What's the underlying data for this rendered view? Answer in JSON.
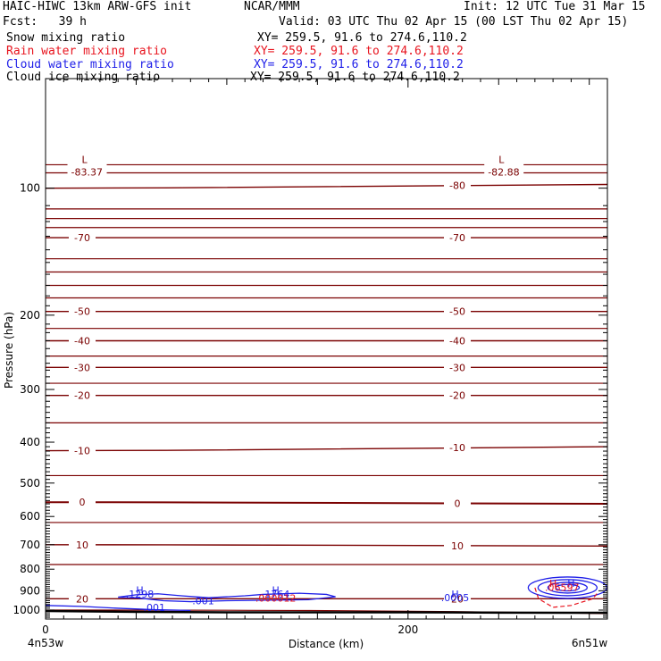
{
  "header": {
    "title": "HAIC-HIWC 13km ARW-GFS init",
    "org": "NCAR/MMM",
    "init": "Init: 12 UTC Tue 31 Mar 15",
    "fcst": "Fcst:   39 h",
    "valid": "Valid: 03 UTC Thu 02 Apr 15 (00 LST Thu 02 Apr 15)",
    "fields": [
      {
        "name": "Snow mixing ratio",
        "xy": "XY= 259.5, 91.6 to 274.6,110.2",
        "color": "#000000"
      },
      {
        "name": "Rain water mixing ratio",
        "xy": "XY= 259.5, 91.6 to 274.6,110.2",
        "color": "#e8141e"
      },
      {
        "name": "Cloud water mixing ratio",
        "xy": "XY= 259.5, 91.6 to 274.6,110.2",
        "color": "#1e1ee8"
      },
      {
        "name": "Cloud ice mixing ratio",
        "xy": "XY= 259.5, 91.6 to 274.6,110.2",
        "color": "#000000"
      }
    ]
  },
  "chart_data": {
    "type": "contour-cross-section",
    "xlabel": "Distance (km)",
    "ylabel": "Pressure (hPa)",
    "xlim": [
      0,
      310
    ],
    "ylim": [
      1050,
      55
    ],
    "y_log": true,
    "x_ticks": [
      0,
      200
    ],
    "y_ticks": [
      100,
      200,
      300,
      400,
      500,
      600,
      700,
      800,
      900,
      1000
    ],
    "x_endpoints": {
      "left": "4n53w",
      "right": "6n51w"
    },
    "temperature_isotherms": {
      "color": "#7a0000",
      "levels": [
        {
          "value": -80,
          "p_left": 100,
          "p_right": 98,
          "label_left": "",
          "label_right": "-80"
        },
        {
          "value": -70,
          "p_left": 131,
          "p_right": 131,
          "label_left": "-70",
          "label_right": "-70"
        },
        {
          "value": -50,
          "p_left": 196,
          "p_right": 196,
          "label_left": "-50",
          "label_right": "-50"
        },
        {
          "value": -40,
          "p_left": 230,
          "p_right": 230,
          "label_left": "-40",
          "label_right": "-40"
        },
        {
          "value": -30,
          "p_left": 266,
          "p_right": 266,
          "label_left": "-30",
          "label_right": "-30"
        },
        {
          "value": -20,
          "p_left": 310,
          "p_right": 310,
          "label_left": "-20",
          "label_right": "-20"
        },
        {
          "value": -10,
          "p_left": 419,
          "p_right": 410,
          "label_left": "-10",
          "label_right": "-10"
        },
        {
          "value": 0,
          "p_left": 555,
          "p_right": 560,
          "label_left": "0",
          "label_right": "0"
        },
        {
          "value": 10,
          "p_left": 700,
          "p_right": 705,
          "label_left": "10",
          "label_right": "10"
        },
        {
          "value": 20,
          "p_left": 940,
          "p_right": 940,
          "label_left": "20",
          "label_right": "20"
        }
      ],
      "extrema": [
        {
          "type": "L",
          "value": "-83.37",
          "x": 18,
          "p": 83
        },
        {
          "type": "L",
          "value": "-82.88",
          "x": 248,
          "p": 83
        }
      ]
    },
    "cloud_water": {
      "color": "#1e1ee8",
      "labels": [
        {
          "text": "H",
          "x": 52,
          "p": 913
        },
        {
          "text": ".1298",
          "x": 52,
          "p": 933
        },
        {
          "text": ".001",
          "x": 87,
          "p": 968
        },
        {
          "text": "H",
          "x": 127,
          "p": 913
        },
        {
          "text": ".1764",
          "x": 127,
          "p": 933
        },
        {
          "text": ".001",
          "x": 60,
          "p": 1004
        },
        {
          "text": "H",
          "x": 226,
          "p": 933
        },
        {
          "text": ".0005",
          "x": 226,
          "p": 953
        },
        {
          "text": "H",
          "x": 290,
          "p": 880
        }
      ]
    },
    "rain_water": {
      "color": "#e8141e",
      "labels": [
        {
          "text": ".000012",
          "x": 127,
          "p": 955
        },
        {
          "text": "H",
          "x": 280,
          "p": 880
        },
        {
          "text": ".06597",
          "x": 285,
          "p": 900
        }
      ]
    }
  }
}
